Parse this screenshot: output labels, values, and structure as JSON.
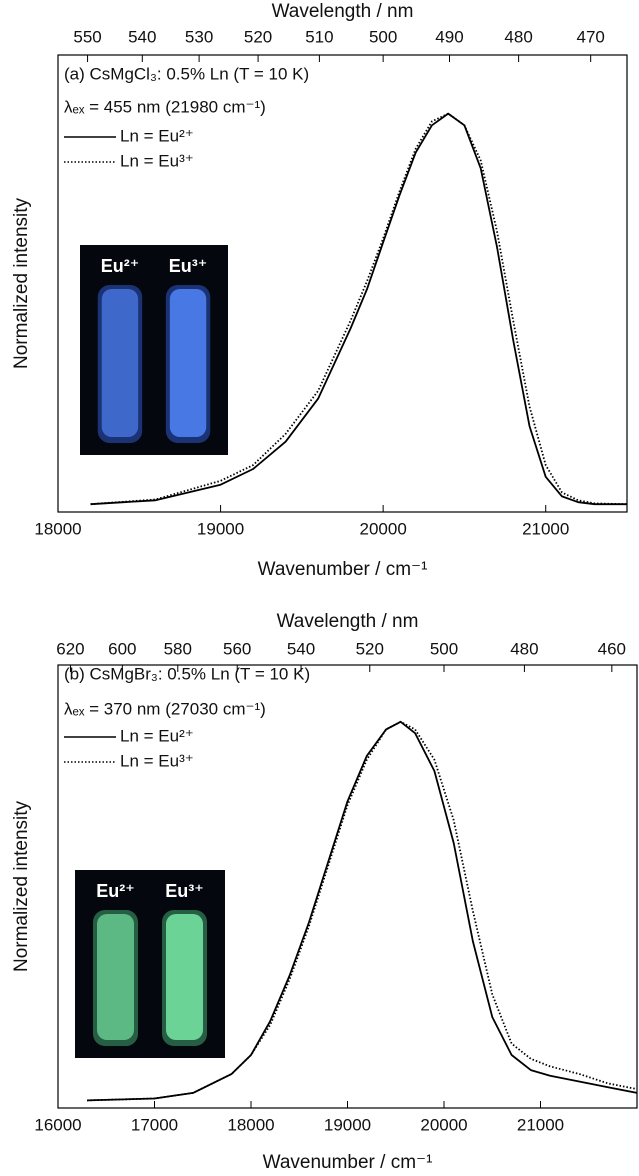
{
  "chart_data": [
    {
      "type": "line",
      "x2label": "Wavelength / nm",
      "xlabel": "Wavenumber / cm⁻¹",
      "ylabel": "Normalized intensity",
      "annotations": [
        "(a) CsMgCl₃: 0.5% Ln (T = 10 K)",
        "λₑₓ = 455 nm (21980 cm⁻¹)"
      ],
      "inset_labels": [
        "Eu²⁺",
        "Eu³⁺"
      ],
      "xlim": [
        18000,
        21500
      ],
      "xticks": [
        18000,
        19000,
        20000,
        21000
      ],
      "x2ticks": [
        550,
        540,
        530,
        520,
        510,
        500,
        490,
        480,
        470
      ],
      "ylim": [
        -0.02,
        1.15
      ],
      "x": [
        18200,
        18600,
        19000,
        19200,
        19400,
        19600,
        19800,
        19900,
        20000,
        20100,
        20200,
        20300,
        20400,
        20500,
        20600,
        20700,
        20800,
        20900,
        21000,
        21100,
        21200,
        21300,
        21500
      ],
      "series": [
        {
          "name": "Ln = Eu²⁺",
          "color": "#000000",
          "line_style": "solid",
          "values": [
            0,
            0.01,
            0.05,
            0.09,
            0.16,
            0.27,
            0.45,
            0.55,
            0.67,
            0.79,
            0.9,
            0.97,
            1.0,
            0.97,
            0.86,
            0.66,
            0.42,
            0.2,
            0.07,
            0.02,
            0.005,
            0,
            0
          ]
        },
        {
          "name": "Ln = Eu³⁺",
          "color": "#000000",
          "line_style": "dotted",
          "values": [
            0,
            0.012,
            0.06,
            0.1,
            0.18,
            0.29,
            0.47,
            0.57,
            0.68,
            0.8,
            0.91,
            0.98,
            1.0,
            0.97,
            0.88,
            0.7,
            0.47,
            0.25,
            0.1,
            0.03,
            0.01,
            0.002,
            0
          ]
        }
      ]
    },
    {
      "type": "line",
      "x2label": "Wavelength / nm",
      "xlabel": "Wavenumber / cm⁻¹",
      "ylabel": "Normalized intensity",
      "annotations": [
        "(b) CsMgBr₃: 0.5% Ln (T = 10 K)",
        "λₑₓ = 370 nm (27030 cm⁻¹)"
      ],
      "inset_labels": [
        "Eu²⁺",
        "Eu³⁺"
      ],
      "xlim": [
        16000,
        22000
      ],
      "xticks": [
        16000,
        17000,
        18000,
        19000,
        20000,
        21000
      ],
      "x2ticks": [
        620,
        600,
        580,
        560,
        540,
        520,
        500,
        480,
        460
      ],
      "ylim": [
        -0.02,
        1.15
      ],
      "x": [
        16300,
        17000,
        17400,
        17800,
        18000,
        18200,
        18400,
        18600,
        18800,
        19000,
        19200,
        19400,
        19550,
        19700,
        19900,
        20100,
        20300,
        20500,
        20700,
        20900,
        21100,
        21400,
        21700,
        22000
      ],
      "series": [
        {
          "name": "Ln = Eu²⁺",
          "color": "#000000",
          "line_style": "solid",
          "values": [
            0,
            0.005,
            0.02,
            0.07,
            0.12,
            0.21,
            0.33,
            0.47,
            0.63,
            0.79,
            0.91,
            0.98,
            1.0,
            0.97,
            0.87,
            0.68,
            0.42,
            0.22,
            0.12,
            0.08,
            0.065,
            0.05,
            0.035,
            0.02
          ]
        },
        {
          "name": "Ln = Eu³⁺",
          "color": "#000000",
          "line_style": "dotted",
          "values": [
            0,
            0.005,
            0.02,
            0.07,
            0.12,
            0.2,
            0.32,
            0.46,
            0.62,
            0.78,
            0.9,
            0.98,
            1.0,
            0.98,
            0.9,
            0.74,
            0.5,
            0.28,
            0.15,
            0.11,
            0.09,
            0.07,
            0.045,
            0.03
          ]
        }
      ]
    }
  ]
}
